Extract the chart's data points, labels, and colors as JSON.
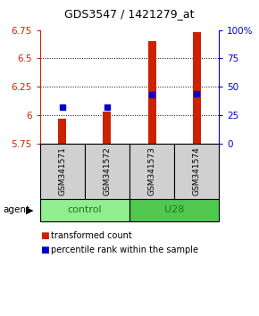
{
  "title": "GDS3547 / 1421279_at",
  "samples": [
    "GSM341571",
    "GSM341572",
    "GSM341573",
    "GSM341574"
  ],
  "group_labels": [
    "control",
    "U28"
  ],
  "bar_bottom": 5.75,
  "bar_values": [
    5.97,
    6.03,
    6.65,
    6.73
  ],
  "percentile_values": [
    6.07,
    6.07,
    6.18,
    6.19
  ],
  "ylim": [
    5.75,
    6.75
  ],
  "yticks_left": [
    5.75,
    6.0,
    6.25,
    6.5,
    6.75
  ],
  "ytick_labels_left": [
    "5.75",
    "6",
    "6.25",
    "6.5",
    "6.75"
  ],
  "right_yticks": [
    0,
    25,
    50,
    75,
    100
  ],
  "right_ytick_labels": [
    "0",
    "25",
    "50",
    "75",
    "100%"
  ],
  "bar_color": "#CC2200",
  "percentile_color": "#0000CC",
  "bar_width": 0.18,
  "legend_labels": [
    "transformed count",
    "percentile rank within the sample"
  ],
  "agent_label": "agent",
  "control_color": "#90EE90",
  "u28_color": "#50C850",
  "sample_bg_color": "#D0D0D0",
  "group_text_color": "#1a7a1a"
}
